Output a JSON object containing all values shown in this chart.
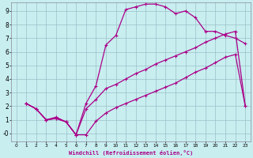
{
  "background_color": "#c8eef0",
  "grid_color": "#9bbfc8",
  "line_color": "#aa0088",
  "xlim": [
    -0.5,
    23.5
  ],
  "ylim": [
    -0.6,
    9.6
  ],
  "xlabel": "Windchill (Refroidissement éolien,°C)",
  "yticks": [
    0,
    1,
    2,
    3,
    4,
    5,
    6,
    7,
    8,
    9
  ],
  "ytick_labels": [
    "-0",
    "1",
    "2",
    "3",
    "4",
    "5",
    "6",
    "7",
    "8",
    "9"
  ],
  "xticks": [
    0,
    1,
    2,
    3,
    4,
    5,
    6,
    7,
    8,
    9,
    10,
    11,
    12,
    13,
    14,
    15,
    16,
    17,
    18,
    19,
    20,
    21,
    22,
    23
  ],
  "curve1_x": [
    1,
    2,
    3,
    4,
    5,
    6,
    7,
    8,
    9,
    10,
    11,
    12,
    13,
    14,
    15,
    16,
    17,
    18,
    19,
    20,
    21,
    22,
    23
  ],
  "curve1_y": [
    2.2,
    1.8,
    1.0,
    1.1,
    0.85,
    -0.1,
    2.2,
    3.5,
    6.5,
    7.2,
    9.1,
    9.3,
    9.5,
    9.5,
    9.3,
    8.8,
    9.0,
    8.5,
    7.5,
    7.5,
    7.2,
    7.0,
    6.6
  ],
  "curve2_x": [
    1,
    2,
    3,
    4,
    5,
    6,
    7,
    8,
    9,
    10,
    11,
    12,
    13,
    14,
    15,
    16,
    17,
    18,
    19,
    20,
    21,
    22,
    23
  ],
  "curve2_y": [
    2.2,
    1.8,
    1.0,
    1.2,
    0.85,
    -0.1,
    -0.1,
    0.9,
    1.5,
    1.9,
    2.2,
    2.5,
    2.8,
    3.1,
    3.4,
    3.7,
    4.1,
    4.5,
    4.8,
    5.2,
    5.6,
    5.8,
    2.0
  ],
  "curve3_x": [
    1,
    2,
    3,
    4,
    5,
    6,
    7,
    8,
    9,
    10,
    11,
    12,
    13,
    14,
    15,
    16,
    17,
    18,
    19,
    20,
    21,
    22,
    23
  ],
  "curve3_y": [
    2.2,
    1.8,
    1.0,
    1.1,
    0.85,
    -0.1,
    1.8,
    2.5,
    3.3,
    3.6,
    4.0,
    4.4,
    4.7,
    5.1,
    5.4,
    5.7,
    6.0,
    6.3,
    6.7,
    7.0,
    7.3,
    7.5,
    2.0
  ]
}
